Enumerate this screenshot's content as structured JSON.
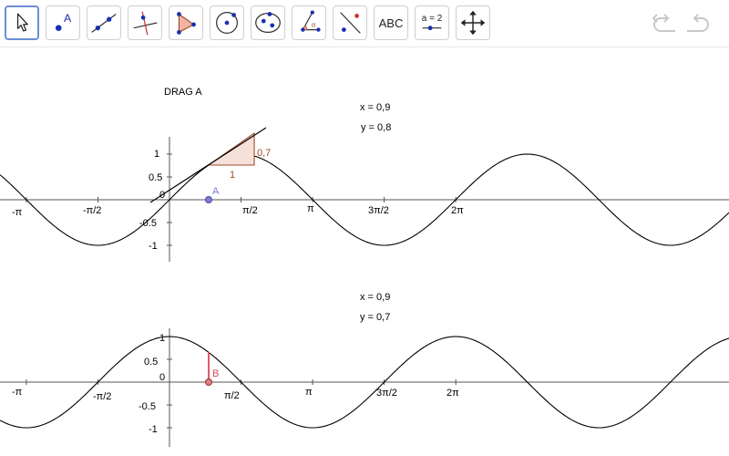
{
  "toolbar": {
    "tools": [
      {
        "name": "move-tool",
        "active": true
      },
      {
        "name": "point-tool"
      },
      {
        "name": "line-tool"
      },
      {
        "name": "perpendicular-line-tool"
      },
      {
        "name": "polygon-tool"
      },
      {
        "name": "circle-tool"
      },
      {
        "name": "ellipse-tool"
      },
      {
        "name": "angle-tool"
      },
      {
        "name": "reflect-tool"
      },
      {
        "name": "text-tool",
        "label": "ABC"
      },
      {
        "name": "slider-tool",
        "label": "a = 2"
      },
      {
        "name": "move-graphics-view-tool"
      }
    ],
    "point_icon_label": "A",
    "undo_icon": "undo-icon",
    "redo_icon": "redo-icon"
  },
  "instruction": "DRAG A",
  "top_graph": {
    "x_readout": "x = 0,9",
    "y_readout": "y = 0,8",
    "point_label": "A",
    "slope_run_label": "1",
    "slope_rise_label": "0,7",
    "x_ticks": [
      "-π",
      "-π/2",
      "π/2",
      "π",
      "3π/2",
      "2π"
    ],
    "y_ticks": [
      "1",
      "0.5",
      "0",
      "-0.5",
      "-1"
    ],
    "colors": {
      "point": "#7d7dd6",
      "triangle": "#a04a2a",
      "curve": "#000000"
    }
  },
  "bottom_graph": {
    "x_readout": "x = 0,9",
    "y_readout": "y = 0,7",
    "point_label": "B",
    "x_ticks": [
      "-π",
      "-π/2",
      "π/2",
      "π",
      "3π/2",
      "2π"
    ],
    "y_ticks": [
      "1",
      "0.5",
      "0",
      "-0.5",
      "-1"
    ],
    "colors": {
      "point": "#d94a4a",
      "segment": "#d94a5a",
      "curve": "#000000"
    }
  },
  "chart_data": [
    {
      "type": "line",
      "function": "sin(x)",
      "x_range": [
        -3.9,
        9.95
      ],
      "y_range": [
        -1.35,
        1.35
      ],
      "point": {
        "name": "A",
        "x": 0.9,
        "y": 0
      },
      "tangent_at_x": 0.9,
      "tangent_slope": 0.7,
      "readouts": {
        "x": 0.9,
        "y": 0.8
      }
    },
    {
      "type": "line",
      "function": "cos(x)",
      "x_range": [
        -3.9,
        9.95
      ],
      "y_range": [
        -1.35,
        1.35
      ],
      "point": {
        "name": "B",
        "x": 0.9,
        "y": 0
      },
      "segment_to_y": 0.7,
      "readouts": {
        "x": 0.9,
        "y": 0.7
      }
    }
  ]
}
